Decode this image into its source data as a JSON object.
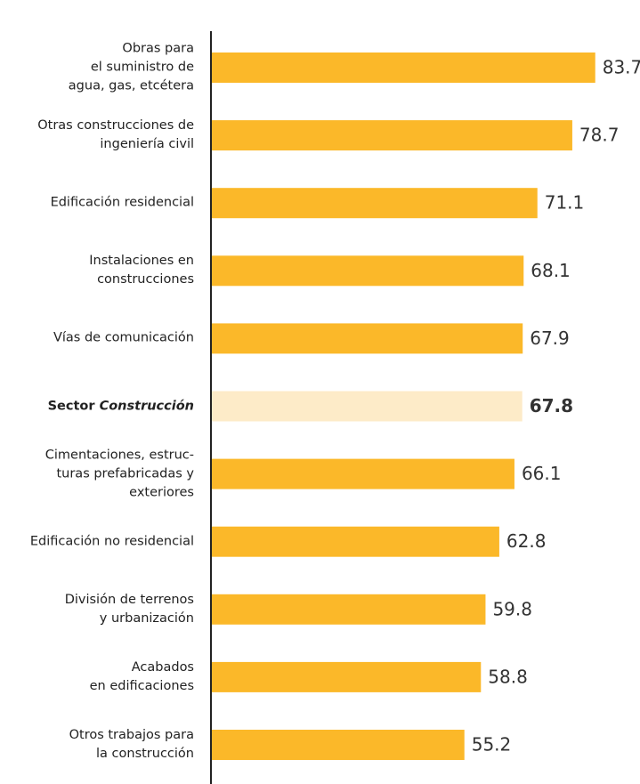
{
  "chart_data": {
    "type": "bar",
    "orientation": "horizontal",
    "categories": [
      "Obras para\nel suministro de\nagua, gas, etcétera",
      "Otras construcciones de\ningeniería civil",
      "Edificación residencial",
      "Instalaciones en\nconstrucciones",
      "Vías de comunicación",
      "Sector Construcción",
      "Cimentaciones, estruc-\nturas prefabricadas y\nexteriores",
      "Edificación no residencial",
      "División de terrenos\ny urbanización",
      "Acabados\nen edificaciones",
      "Otros trabajos para\nla construcción"
    ],
    "values": [
      83.7,
      78.7,
      71.1,
      68.1,
      67.9,
      67.8,
      66.1,
      62.8,
      59.8,
      58.8,
      55.2
    ],
    "color": "#fbb829",
    "highlight_index": 5,
    "highlight_color": "#fdebc8",
    "xlim": [
      0,
      100
    ]
  }
}
